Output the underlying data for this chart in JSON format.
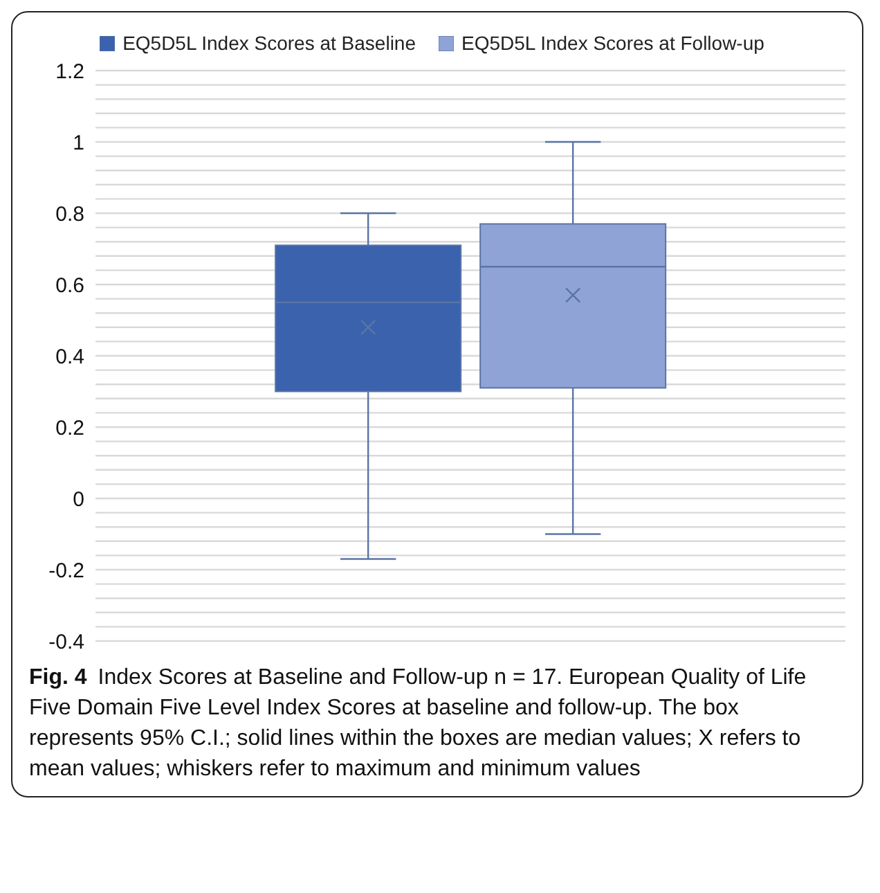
{
  "chart_data": {
    "type": "box",
    "categories": [
      null
    ],
    "series": [
      {
        "name": "EQ5D5L Index Scores at Baseline",
        "color": "#3a62ad",
        "boxes": [
          {
            "low": -0.17,
            "q1": 0.3,
            "median": 0.55,
            "q3": 0.71,
            "high": 0.8,
            "mean": 0.48
          }
        ]
      },
      {
        "name": "EQ5D5L Index Scores at Follow-up",
        "color": "#8fa3d6",
        "boxes": [
          {
            "low": -0.1,
            "q1": 0.31,
            "median": 0.65,
            "q3": 0.77,
            "high": 1,
            "mean": 0.57
          }
        ]
      }
    ],
    "ylim": [
      -0.4,
      1.2
    ],
    "yticks": [
      -0.4,
      {
        "value": -0.36,
        "label": null
      },
      {
        "value": -0.32,
        "label": null
      },
      {
        "value": -0.28,
        "label": null
      },
      {
        "value": -0.24,
        "label": null
      },
      -0.2,
      {
        "value": -0.16,
        "label": null
      },
      {
        "value": -0.12,
        "label": null
      },
      {
        "value": -0.08,
        "label": null
      },
      {
        "value": -0.04,
        "label": null
      },
      0,
      {
        "value": 0.04,
        "label": null
      },
      {
        "value": 0.08,
        "label": null
      },
      {
        "value": 0.12,
        "label": null
      },
      {
        "value": 0.16,
        "label": null
      },
      0.2,
      {
        "value": 0.24,
        "label": null
      },
      {
        "value": 0.28,
        "label": null
      },
      {
        "value": 0.32,
        "label": null
      },
      {
        "value": 0.36,
        "label": null
      },
      0.4,
      {
        "value": 0.44,
        "label": null
      },
      {
        "value": 0.48,
        "label": null
      },
      {
        "value": 0.52,
        "label": null
      },
      {
        "value": 0.56,
        "label": null
      },
      0.6,
      {
        "value": 0.64,
        "label": null
      },
      {
        "value": 0.68,
        "label": null
      },
      {
        "value": 0.72,
        "label": null
      },
      {
        "value": 0.76,
        "label": null
      },
      0.8,
      {
        "value": 0.84,
        "label": null
      },
      {
        "value": 0.88,
        "label": null
      },
      {
        "value": 0.92,
        "label": null
      },
      {
        "value": 0.96,
        "label": null
      },
      1,
      {
        "value": 1.04,
        "label": null
      },
      {
        "value": 1.08,
        "label": null
      },
      {
        "value": 1.12,
        "label": null
      },
      {
        "value": 1.16,
        "label": null
      },
      1.2
    ],
    "grid": "y",
    "legend": "top",
    "marker": "cross",
    "annotations": [
      "Fig. 4",
      "Index Scores at Baseline and Follow-up n = 17. European Quality of Life Five Domain Five Level Index Scores at baseline and follow-up. The box represents 95% C.I.; solid lines within the boxes are median values; X refers to mean values; whiskers refer to maximum and minimum values"
    ]
  }
}
